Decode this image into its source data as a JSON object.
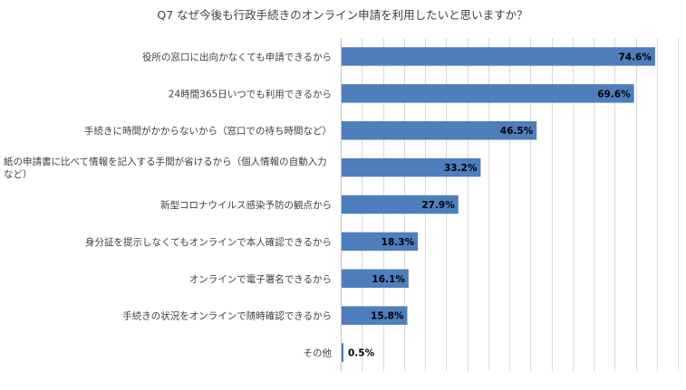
{
  "chart_data": {
    "type": "bar",
    "orientation": "horizontal",
    "title": "Q7 なぜ今後も行政手続きのオンライン申請を利用したいと思いますか？",
    "categories": [
      [
        "役所の窓口に出向かなくても申請できるから"
      ],
      [
        "24時間365日いつでも利用できるから"
      ],
      [
        "手続きに時間がかからないから（窓口での待ち時間など）"
      ],
      [
        "紙の申請書に比べて情報を記入する手間が省けるから（個人情報の自動入力",
        "など）"
      ],
      [
        "新型コロナウイルス感染予防の観点から"
      ],
      [
        "身分証を提示しなくてもオンラインで本人確認できるから"
      ],
      [
        "オンラインで電子署名できるから"
      ],
      [
        "手続きの状況をオンラインで随時確認できるから"
      ],
      [
        "その他"
      ]
    ],
    "values": [
      74.6,
      69.6,
      46.5,
      33.2,
      27.9,
      18.3,
      16.1,
      15.8,
      0.5
    ],
    "value_labels": [
      "74.6%",
      "69.6%",
      "46.5%",
      "33.2%",
      "27.9%",
      "18.3%",
      "16.1%",
      "15.8%",
      "0.5%"
    ],
    "xlim": [
      0,
      80
    ],
    "grid_step": 5,
    "grid": true,
    "tick_labels_shown": false,
    "bar_color": "#4e7ebd",
    "label_inside_bar_color": "#000000"
  }
}
